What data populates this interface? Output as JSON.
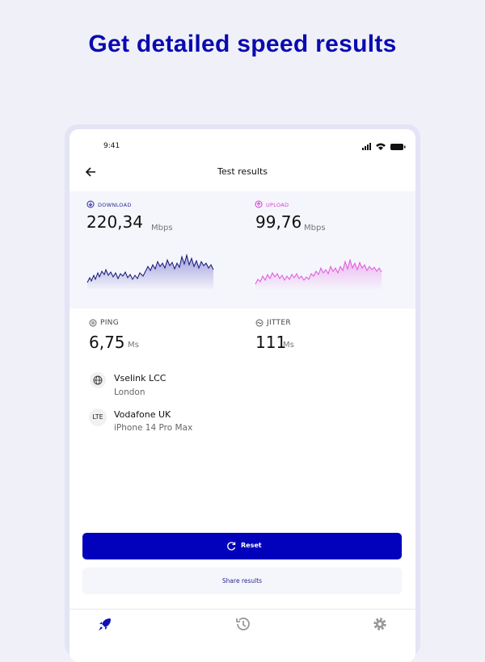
{
  "headline": "Get detailed speed results",
  "status_bar": {
    "time": "9:41"
  },
  "header": {
    "title": "Test results"
  },
  "download": {
    "label": "DOWNLOAD",
    "value": "220,34",
    "unit": "Mbps"
  },
  "upload": {
    "label": "UPLOAD",
    "value": "99,76",
    "unit": "Mbps"
  },
  "ping": {
    "label": "PING",
    "value": "6,75",
    "unit": "Ms"
  },
  "jitter": {
    "label": "JITTER",
    "value": "111",
    "unit": "Ms"
  },
  "providers": [
    {
      "icon": null,
      "name": "Vselink LCC",
      "detail": "London"
    },
    {
      "icon": "LTE",
      "name": "Vodafone UK",
      "detail": "iPhone 14 Pro Max"
    }
  ],
  "buttons": {
    "reset": "Reset",
    "share": "Share results"
  }
}
